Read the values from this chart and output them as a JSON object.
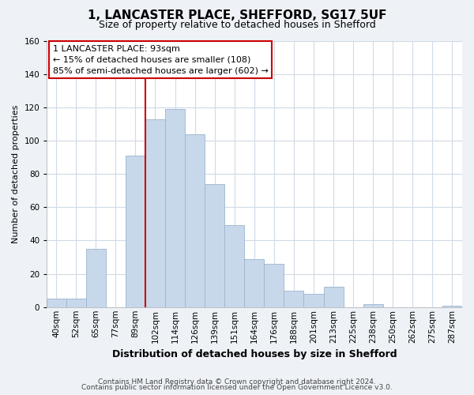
{
  "title": "1, LANCASTER PLACE, SHEFFORD, SG17 5UF",
  "subtitle": "Size of property relative to detached houses in Shefford",
  "xlabel": "Distribution of detached houses by size in Shefford",
  "ylabel": "Number of detached properties",
  "bar_labels": [
    "40sqm",
    "52sqm",
    "65sqm",
    "77sqm",
    "89sqm",
    "102sqm",
    "114sqm",
    "126sqm",
    "139sqm",
    "151sqm",
    "164sqm",
    "176sqm",
    "188sqm",
    "201sqm",
    "213sqm",
    "225sqm",
    "238sqm",
    "250sqm",
    "262sqm",
    "275sqm",
    "287sqm"
  ],
  "bar_values": [
    5,
    5,
    35,
    0,
    91,
    113,
    119,
    104,
    74,
    49,
    29,
    26,
    10,
    8,
    12,
    0,
    2,
    0,
    0,
    0,
    1
  ],
  "bar_color": "#c8d8eb",
  "bar_edge_color": "#9ab5cc",
  "ylim": [
    0,
    160
  ],
  "yticks": [
    0,
    20,
    40,
    60,
    80,
    100,
    120,
    140,
    160
  ],
  "vline_color": "#cc0000",
  "annotation_title": "1 LANCASTER PLACE: 93sqm",
  "annotation_line1": "← 15% of detached houses are smaller (108)",
  "annotation_line2": "85% of semi-detached houses are larger (602) →",
  "footer1": "Contains HM Land Registry data © Crown copyright and database right 2024.",
  "footer2": "Contains public sector information licensed under the Open Government Licence v3.0.",
  "background_color": "#eef2f7",
  "plot_background_color": "#ffffff",
  "grid_color": "#d0dae5",
  "title_fontsize": 11,
  "subtitle_fontsize": 9,
  "ylabel_fontsize": 8,
  "xlabel_fontsize": 9,
  "tick_fontsize": 7.5,
  "annotation_fontsize": 8,
  "footer_fontsize": 6.5
}
